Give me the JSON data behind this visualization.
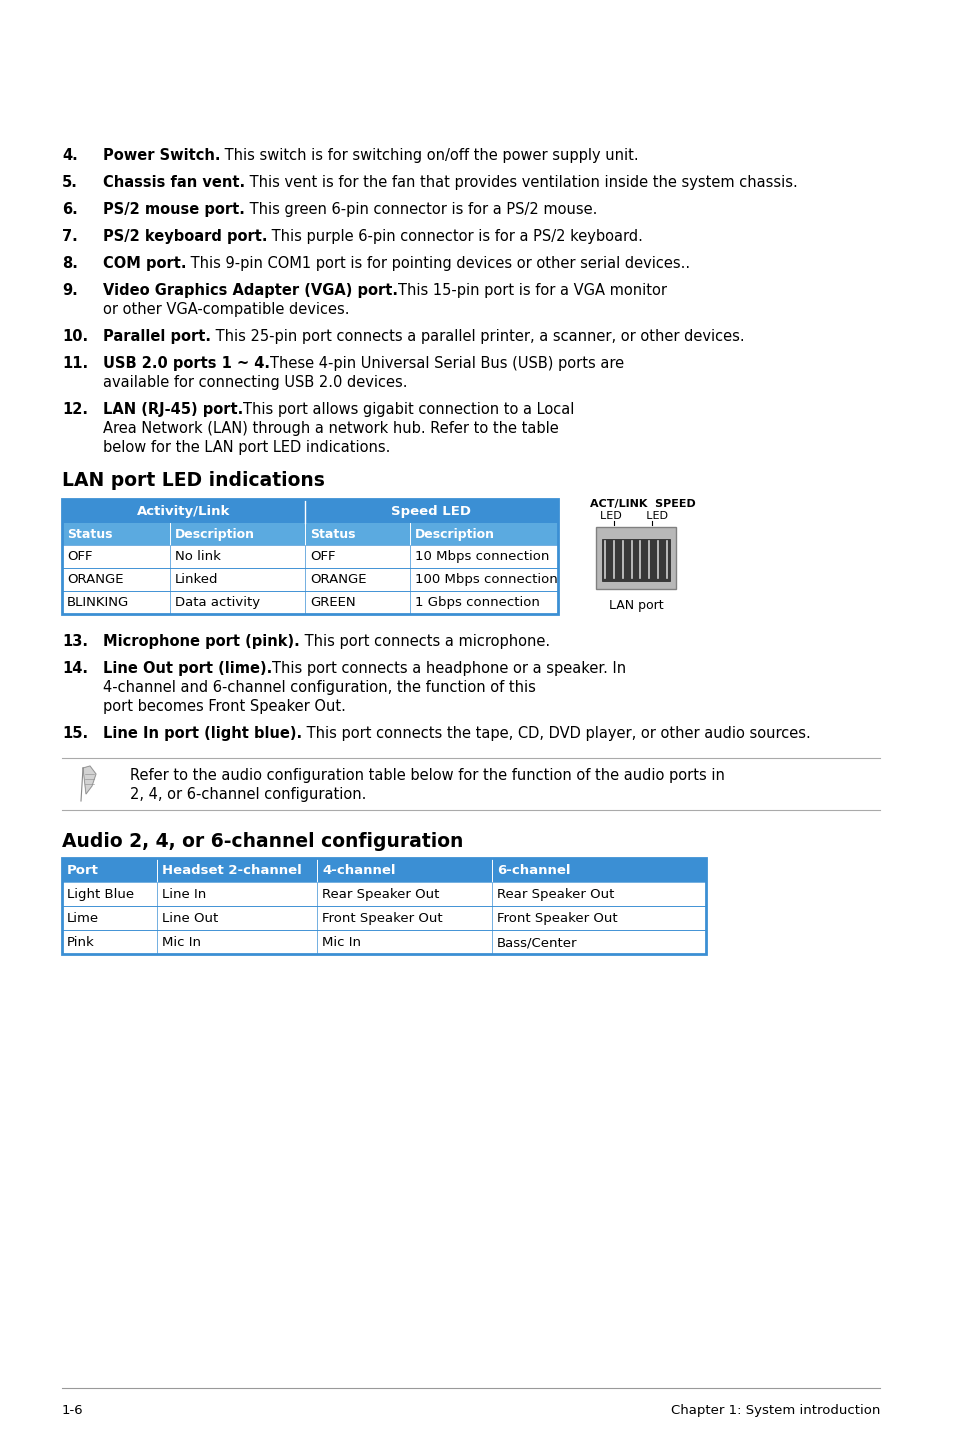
{
  "bg_color": "#ffffff",
  "blue_header": "#3b8fd4",
  "blue_subheader": "#5baae0",
  "table_border": "#3b8fd4",
  "items": [
    {
      "num": "4.",
      "bold": "Power Switch.",
      "rest": " This switch is for switching on/off the power supply unit.",
      "lines": 1
    },
    {
      "num": "5.",
      "bold": "Chassis fan vent.",
      "rest": " This vent is for the fan that provides ventilation inside the system chassis.",
      "lines": 2
    },
    {
      "num": "6.",
      "bold": "PS/2 mouse port.",
      "rest": " This green 6-pin connector is for a PS/2 mouse.",
      "lines": 1
    },
    {
      "num": "7.",
      "bold": "PS/2 keyboard port.",
      "rest": " This purple 6-pin connector is for a PS/2 keyboard.",
      "lines": 1
    },
    {
      "num": "8.",
      "bold": "COM port.",
      "rest": " This 9-pin COM1 port is for pointing devices or other serial devices..",
      "lines": 2
    },
    {
      "num": "9.",
      "bold": "Video Graphics Adapter (VGA) port.",
      "rest": " This 15-pin port is for a VGA monitor or other VGA-compatible devices.",
      "lines": 2
    },
    {
      "num": "10.",
      "bold": "Parallel port.",
      "rest": " This 25-pin port connects a parallel printer, a scanner, or other devices.",
      "lines": 2
    },
    {
      "num": "11.",
      "bold": "USB 2.0 ports 1 ~ 4.",
      "rest": " These 4-pin Universal Serial Bus (USB) ports are available for connecting USB 2.0 devices.",
      "lines": 2
    },
    {
      "num": "12.",
      "bold": "LAN (RJ-45) port.",
      "rest": " This port allows gigabit connection to a Local Area Network (LAN) through a network hub. Refer to the table below for the LAN port LED indications.",
      "lines": 3
    }
  ],
  "lan_section_title": "LAN port LED indications",
  "lan_table_header1": "Activity/Link",
  "lan_table_header2": "Speed LED",
  "lan_col_headers": [
    "Status",
    "Description",
    "Status",
    "Description"
  ],
  "lan_rows": [
    [
      "OFF",
      "No link",
      "OFF",
      "10 Mbps connection"
    ],
    [
      "ORANGE",
      "Linked",
      "ORANGE",
      "100 Mbps connection"
    ],
    [
      "BLINKING",
      "Data activity",
      "GREEN",
      "1 Gbps connection"
    ]
  ],
  "lan_port_label": "LAN port",
  "items2": [
    {
      "num": "13.",
      "bold": "Microphone port (pink).",
      "rest": " This port connects a microphone.",
      "lines": 1
    },
    {
      "num": "14.",
      "bold": "Line Out port (lime).",
      "rest": " This port connects a headphone or a speaker. In 4-channel and 6-channel configuration, the function of this port becomes Front Speaker Out.",
      "lines": 3
    },
    {
      "num": "15.",
      "bold": "Line In port (light blue).",
      "rest": " This port connects the tape, CD, DVD player, or other audio sources.",
      "lines": 2
    }
  ],
  "note_text1": "Refer to the audio configuration table below for the function of the audio ports in",
  "note_text2": "2, 4, or 6-channel configuration.",
  "audio_section_title": "Audio 2, 4, or 6-channel configuration",
  "audio_col_headers": [
    "Port",
    "Headset 2-channel",
    "4-channel",
    "6-channel"
  ],
  "audio_rows": [
    [
      "Light Blue",
      "Line In",
      "Rear Speaker Out",
      "Rear Speaker Out"
    ],
    [
      "Lime",
      "Line Out",
      "Front Speaker Out",
      "Front Speaker Out"
    ],
    [
      "Pink",
      "Mic In",
      "Mic In",
      "Bass/Center"
    ]
  ],
  "footer_left": "1-6",
  "footer_right": "Chapter 1: System introduction"
}
